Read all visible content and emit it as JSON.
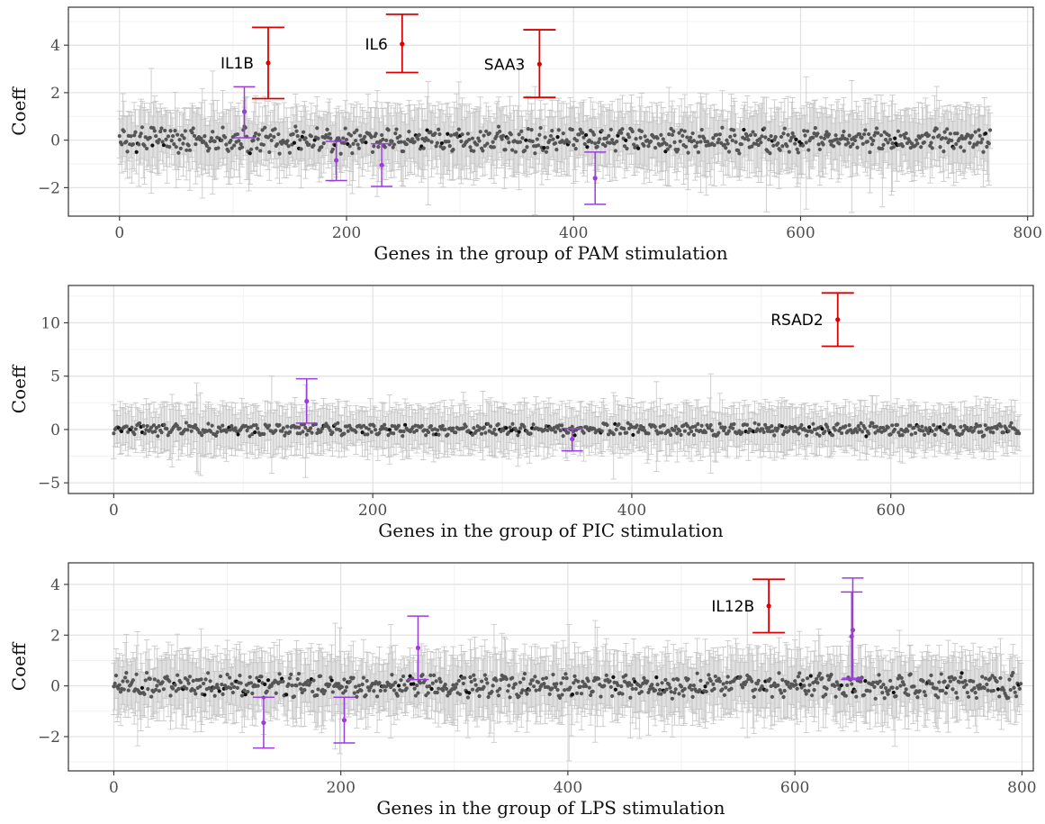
{
  "chart_data": [
    {
      "type": "scatter",
      "xlabel": "Genes in the group of PAM stimulation",
      "ylabel": "Coeff",
      "xlim": [
        -45,
        805
      ],
      "ylim": [
        -3.2,
        5.6
      ],
      "x_ticks": [
        0,
        200,
        400,
        600,
        800
      ],
      "y_ticks": [
        -2,
        0,
        2,
        4
      ],
      "grid": true,
      "n_genes": 768,
      "background": {
        "coeff_range": [
          -0.45,
          0.45
        ],
        "ci_half_width": [
          0.8,
          1.6
        ]
      },
      "highlighted": [
        {
          "x": 131,
          "coeff": 3.25,
          "lower": 1.75,
          "upper": 4.75,
          "label": "IL1B",
          "color": "#dd0000"
        },
        {
          "x": 249,
          "coeff": 4.05,
          "lower": 2.85,
          "upper": 5.3,
          "label": "IL6",
          "color": "#dd0000"
        },
        {
          "x": 370,
          "coeff": 3.2,
          "lower": 1.8,
          "upper": 4.65,
          "label": "SAA3",
          "color": "#dd0000"
        },
        {
          "x": 110,
          "coeff": 1.2,
          "lower": 0.1,
          "upper": 2.25,
          "color": "#9a3ddb"
        },
        {
          "x": 191,
          "coeff": -0.85,
          "lower": -1.7,
          "upper": -0.05,
          "color": "#9a3ddb"
        },
        {
          "x": 231,
          "coeff": -1.05,
          "lower": -1.95,
          "upper": -0.15,
          "color": "#9a3ddb"
        },
        {
          "x": 419,
          "coeff": -1.6,
          "lower": -2.7,
          "upper": -0.5,
          "color": "#9a3ddb"
        }
      ]
    },
    {
      "type": "scatter",
      "xlabel": "Genes in the group of PIC stimulation",
      "ylabel": "Coeff",
      "xlim": [
        -35,
        710
      ],
      "ylim": [
        -6.0,
        13.5
      ],
      "x_ticks": [
        0,
        200,
        400,
        600
      ],
      "y_ticks": [
        -5,
        0,
        5,
        10
      ],
      "grid": true,
      "n_genes": 700,
      "background": {
        "coeff_range": [
          -0.5,
          0.5
        ],
        "ci_half_width": [
          1.2,
          2.6
        ]
      },
      "highlighted": [
        {
          "x": 559,
          "coeff": 10.3,
          "lower": 7.8,
          "upper": 12.8,
          "label": "RSAD2",
          "color": "#dd0000"
        },
        {
          "x": 149,
          "coeff": 2.65,
          "lower": 0.6,
          "upper": 4.75,
          "color": "#9a3ddb"
        },
        {
          "x": 354,
          "coeff": -0.9,
          "lower": -2.0,
          "upper": 0.1,
          "color": "#9a3ddb"
        }
      ]
    },
    {
      "type": "scatter",
      "xlabel": "Genes in the group of LPS stimulation",
      "ylabel": "Coeff",
      "xlim": [
        -40,
        810
      ],
      "ylim": [
        -3.35,
        4.85
      ],
      "x_ticks": [
        0,
        200,
        400,
        600,
        800
      ],
      "y_ticks": [
        -2,
        0,
        2,
        4
      ],
      "grid": true,
      "n_genes": 800,
      "background": {
        "coeff_range": [
          -0.4,
          0.4
        ],
        "ci_half_width": [
          0.7,
          1.5
        ]
      },
      "highlighted": [
        {
          "x": 577,
          "coeff": 3.15,
          "lower": 2.1,
          "upper": 4.2,
          "label": "IL12B",
          "color": "#dd0000"
        },
        {
          "x": 132,
          "coeff": -1.45,
          "lower": -2.45,
          "upper": -0.45,
          "color": "#9a3ddb"
        },
        {
          "x": 203,
          "coeff": -1.35,
          "lower": -2.25,
          "upper": -0.45,
          "color": "#9a3ddb"
        },
        {
          "x": 268,
          "coeff": 1.5,
          "lower": 0.25,
          "upper": 2.75,
          "color": "#9a3ddb"
        },
        {
          "x": 651,
          "coeff": 2.2,
          "lower": 0.3,
          "upper": 4.25,
          "color": "#9a3ddb"
        },
        {
          "x": 650,
          "coeff": 1.95,
          "lower": 0.25,
          "upper": 3.7,
          "color": "#9a3ddb"
        }
      ]
    }
  ]
}
